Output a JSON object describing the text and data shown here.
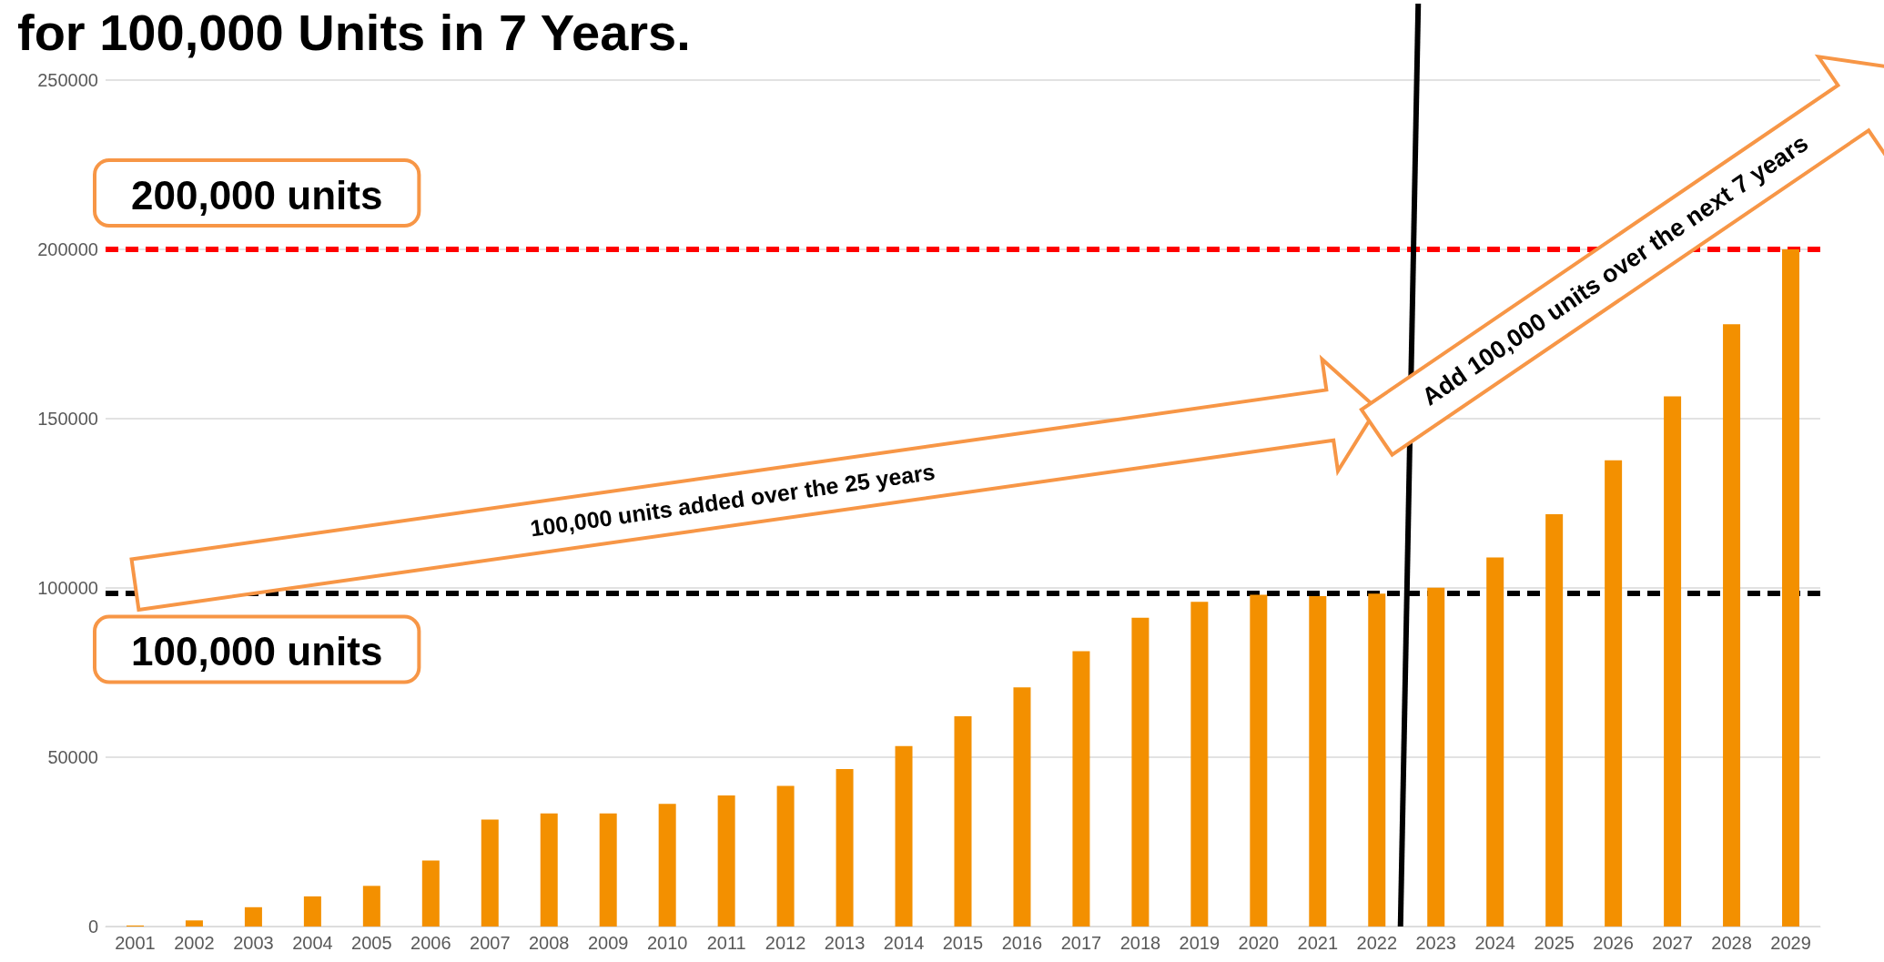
{
  "chart_data": {
    "type": "bar",
    "title": "for 100,000 Units in 7 Years.",
    "categories": [
      "2001",
      "2002",
      "2003",
      "2004",
      "2005",
      "2006",
      "2007",
      "2008",
      "2009",
      "2010",
      "2011",
      "2012",
      "2013",
      "2014",
      "2015",
      "2016",
      "2017",
      "2018",
      "2019",
      "2020",
      "2021",
      "2022",
      "2023",
      "2024",
      "2025",
      "2026",
      "2027",
      "2028",
      "2029"
    ],
    "values": [
      300,
      1800,
      5700,
      8900,
      12000,
      19500,
      31600,
      33400,
      33400,
      36200,
      38700,
      41500,
      46500,
      53300,
      62100,
      70600,
      81300,
      91200,
      95900,
      98000,
      97600,
      98300,
      100100,
      109000,
      121800,
      137700,
      156600,
      177900,
      200000
    ],
    "color": "#f39000",
    "ylim": [
      0,
      250000
    ],
    "yticks": [
      0,
      50000,
      100000,
      150000,
      200000,
      250000
    ],
    "grid": "y",
    "ref_lines": [
      {
        "axis": "y",
        "value": 98500,
        "label": "100,000 units",
        "color": "#000000",
        "line_style": "dashed"
      },
      {
        "axis": "y",
        "value": 200000,
        "label": "200,000 units",
        "color": "#ff0000",
        "line_style": "dashed"
      }
    ],
    "annotations": [
      "100,000 units added over the 25 years",
      "Add 100,000 units over the next 7 years"
    ]
  }
}
